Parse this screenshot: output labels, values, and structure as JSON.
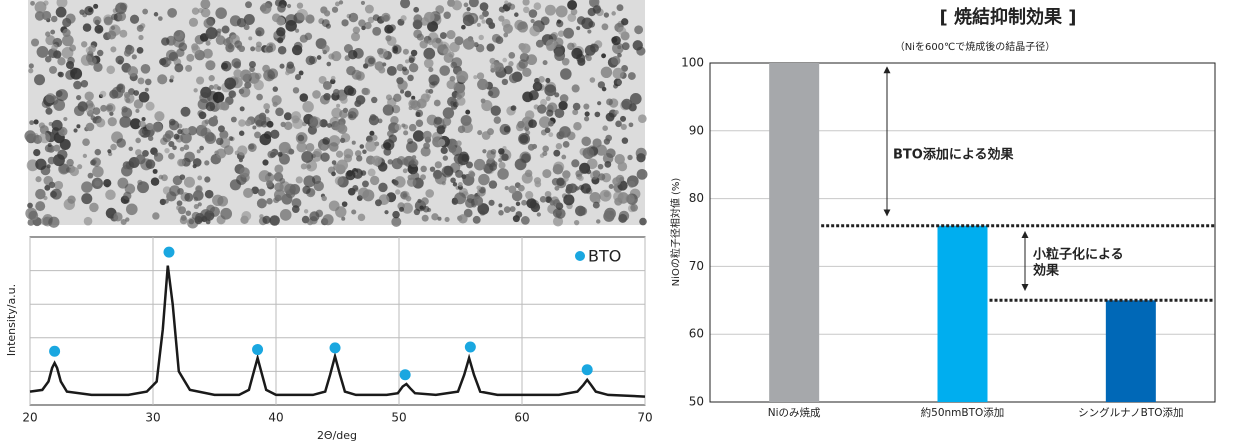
{
  "chart_data": [
    {
      "type": "line",
      "xlabel": "2Θ/deg",
      "ylabel": "Intensity/a.u.",
      "xlim": [
        20,
        70
      ],
      "xticks": [
        20,
        30,
        40,
        50,
        60,
        70
      ],
      "ylim": [
        0,
        100
      ],
      "ygrid": [
        20,
        40,
        60,
        80
      ],
      "grid": true,
      "color": "#1a1a1a",
      "x": [
        20,
        21,
        21.5,
        21.8,
        22,
        22.2,
        22.5,
        23,
        25,
        28,
        29.5,
        30.3,
        30.8,
        31.2,
        31.6,
        32.1,
        33,
        35,
        37,
        37.8,
        38.2,
        38.5,
        38.8,
        39.2,
        40,
        43,
        44,
        44.4,
        44.8,
        45.2,
        45.6,
        46.5,
        49,
        49.9,
        50.3,
        50.6,
        50.9,
        51.3,
        53,
        54.8,
        55.3,
        55.7,
        56.1,
        56.6,
        58,
        63,
        64.5,
        65,
        65.3,
        65.6,
        66,
        67,
        70
      ],
      "values": [
        8,
        9,
        14,
        22,
        25,
        22,
        14,
        8,
        6,
        6,
        8,
        14,
        45,
        83,
        60,
        20,
        9,
        6,
        6,
        9,
        20,
        28,
        20,
        9,
        6,
        6,
        8,
        18,
        29,
        18,
        8,
        6,
        6,
        7,
        11,
        12.5,
        10,
        7,
        6,
        8,
        18,
        28,
        18,
        8,
        6,
        6,
        8,
        12,
        15,
        12,
        8,
        6,
        5
      ],
      "markers": {
        "name": "BTO",
        "color": "#1aa7e0",
        "x": [
          22,
          31.3,
          38.5,
          44.8,
          50.5,
          55.8,
          65.3
        ],
        "values": [
          32,
          91,
          33,
          34,
          18,
          34.5,
          21
        ]
      },
      "legend": "upper right"
    },
    {
      "type": "bar",
      "title": "[ 焼結抑制効果 ]",
      "subtitle": "（Niを600℃で焼成後の結晶子径）",
      "ylabel": "NiOの粒子径相対値 (%)",
      "categories": [
        "Niのみ焼成",
        "約50nmBTO添加",
        "シングルナノBTO添加"
      ],
      "values": [
        100,
        76,
        65
      ],
      "colors": [
        "#a6a8ab",
        "#00aeef",
        "#0068b7"
      ],
      "ylim": [
        50,
        100
      ],
      "yticks": [
        50,
        60,
        70,
        80,
        90,
        100
      ],
      "grid": true,
      "annotations": [
        {
          "text": "BTO添加による効果",
          "color": "#222222"
        },
        {
          "text": [
            "小粒子化による",
            "効果"
          ],
          "color": "#e60033"
        }
      ]
    }
  ]
}
